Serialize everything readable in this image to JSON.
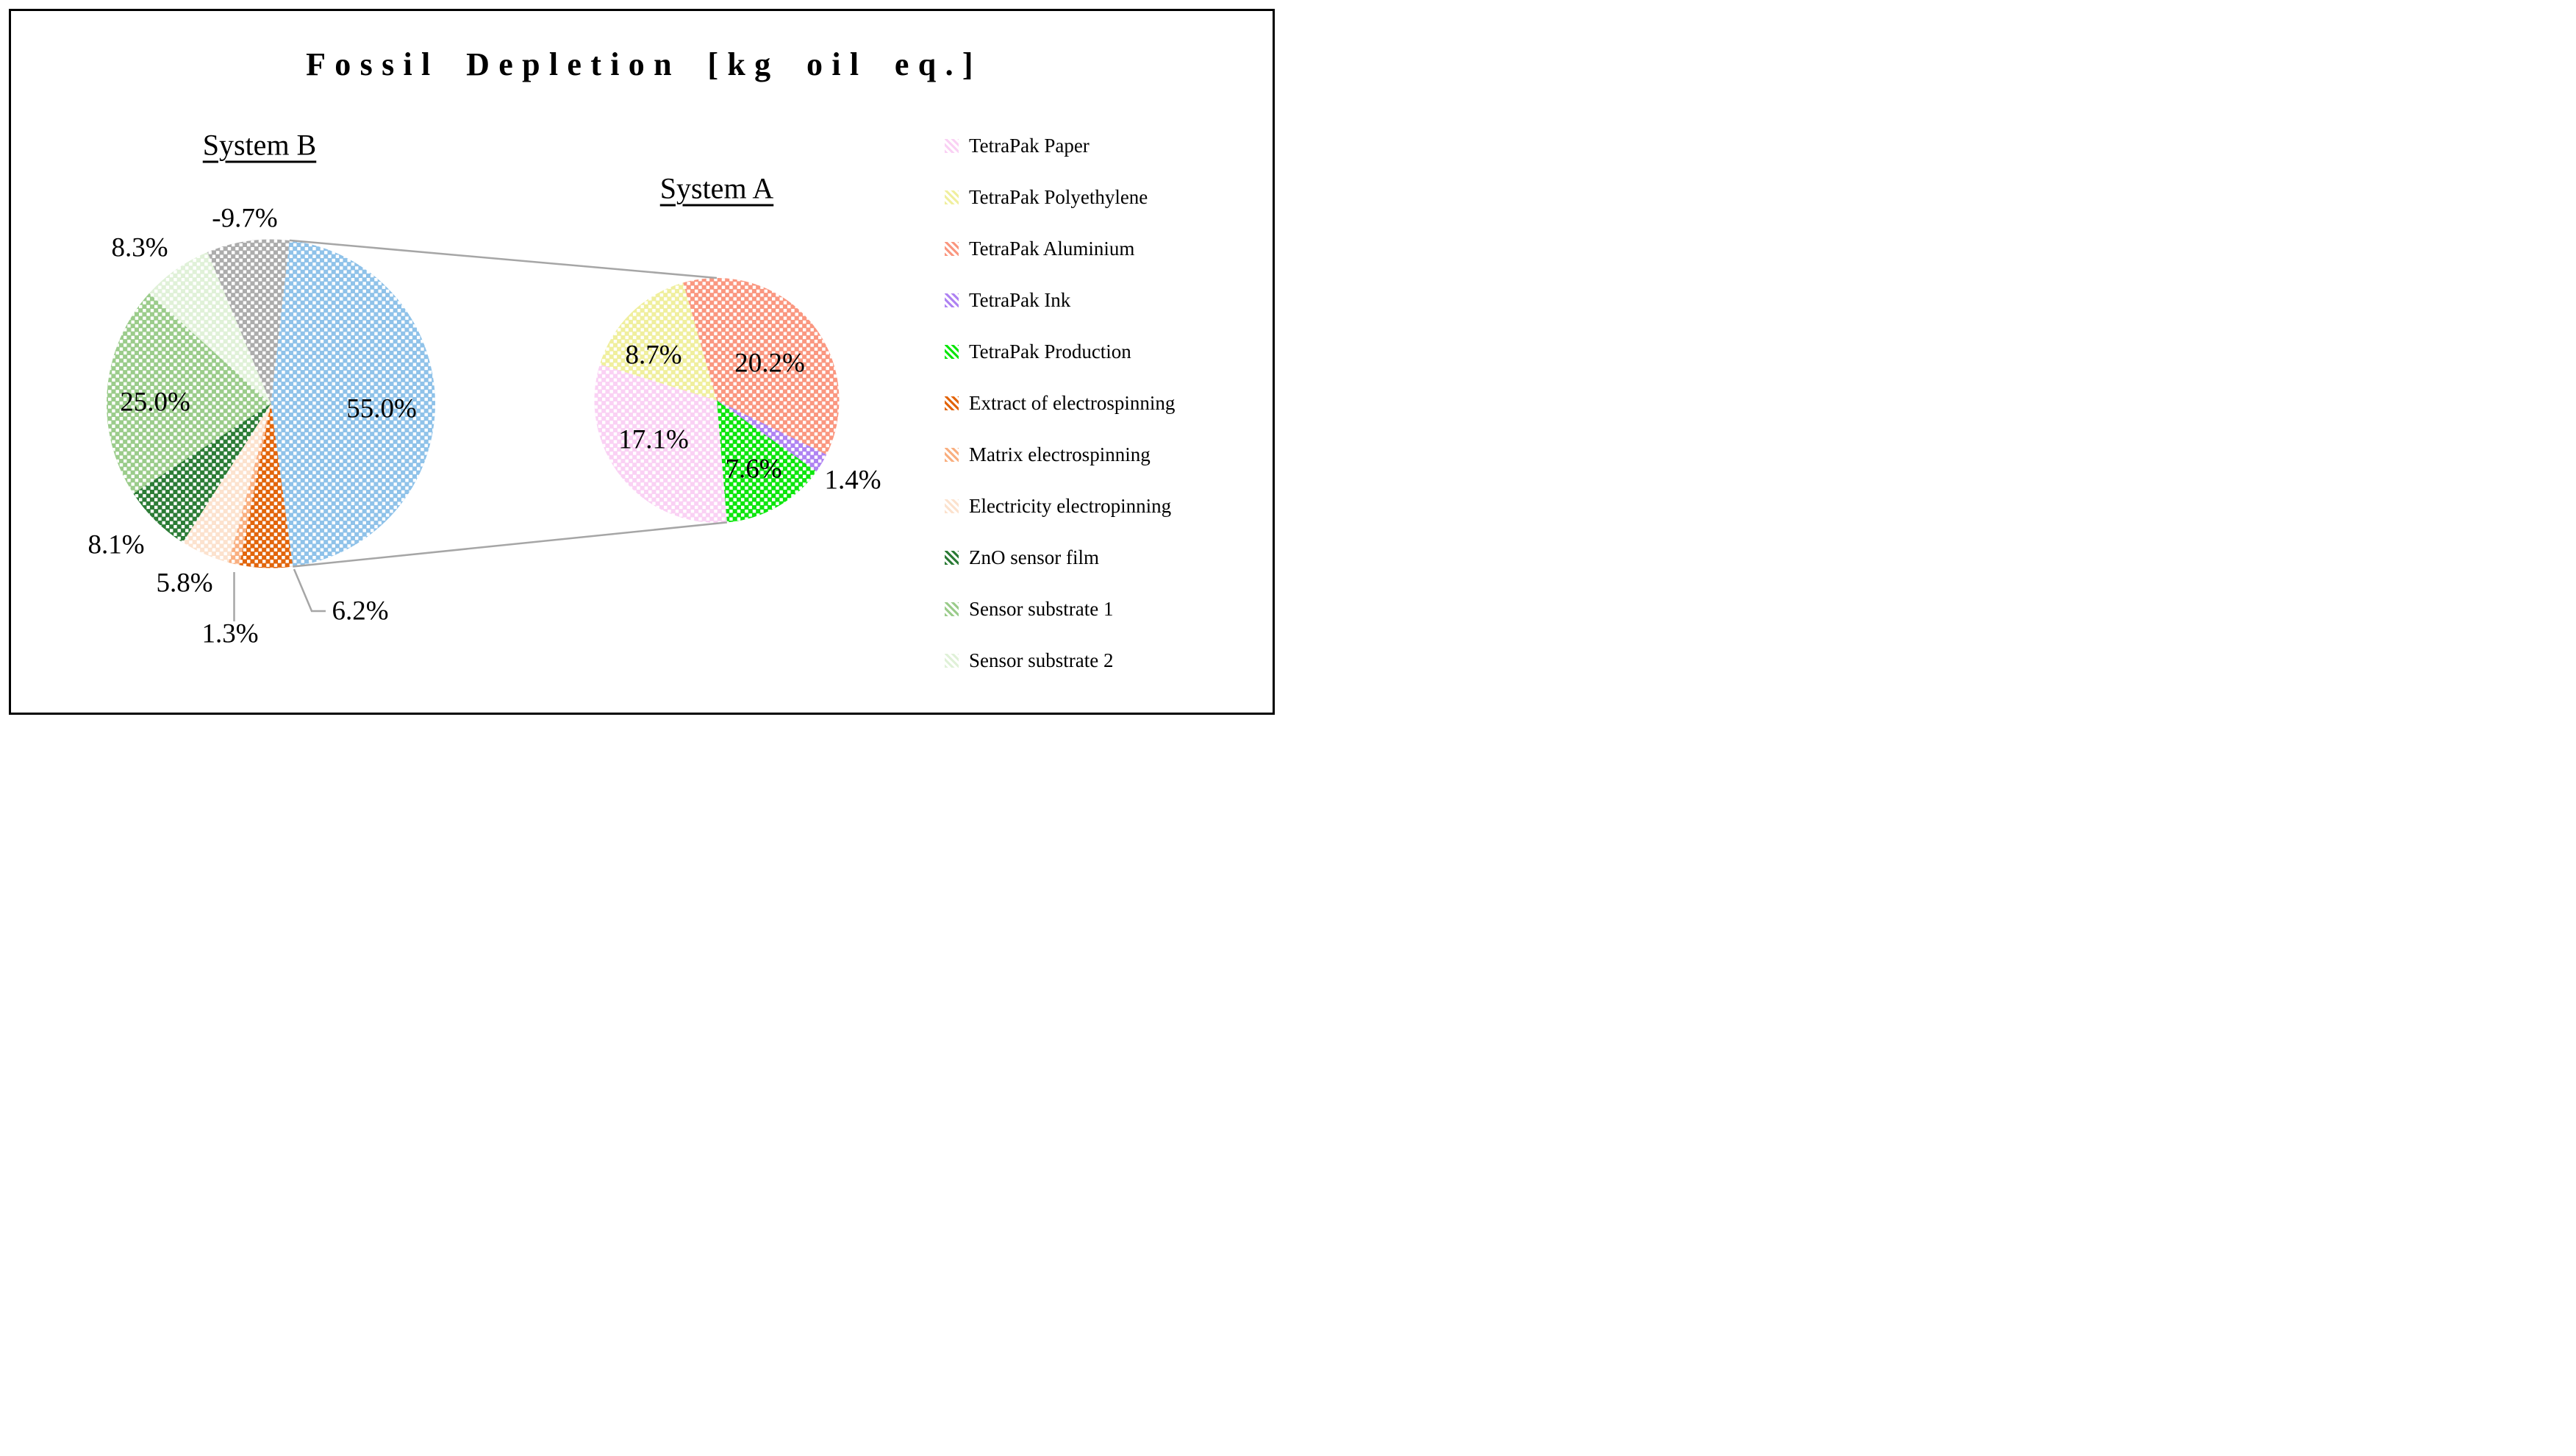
{
  "title": "Fossil Depletion [kg oil eq.]",
  "colors": {
    "connector_gray": "#A6A6A6",
    "frame_black": "#000000",
    "background": "#FFFFFF",
    "hatch": "#FFFFFF"
  },
  "legend": {
    "position": "right",
    "items": [
      {
        "label": "TetraPak Paper",
        "color": "#FAD1F4"
      },
      {
        "label": "TetraPak Polyethylene",
        "color": "#F0EF9E"
      },
      {
        "label": "TetraPak Aluminium",
        "color": "#FA9780"
      },
      {
        "label": "TetraPak Ink",
        "color": "#AF83F2"
      },
      {
        "label": "TetraPak Production",
        "color": "#0CE60C"
      },
      {
        "label": "Extract of electrospinning",
        "color": "#E2650B"
      },
      {
        "label": "Matrix electrospinning",
        "color": "#F9AF80"
      },
      {
        "label": "Electricity electropinning",
        "color": "#FCE2CE"
      },
      {
        "label": "ZnO sensor film",
        "color": "#2C7C36"
      },
      {
        "label": "Sensor substrate 1",
        "color": "#9BCC8B"
      },
      {
        "label": "Sensor substrate 2",
        "color": "#E0F1D8"
      }
    ]
  },
  "chart_data": [
    {
      "type": "pie",
      "title": "System B",
      "start_angle_deg": 6.5,
      "angle_basis": "abs_values",
      "hatch": "white-diagonal-dots",
      "expanded_slice_index": 0,
      "slices": [
        {
          "name": "System A",
          "value": 55.0,
          "display": "55.0%",
          "color": "#8FC2E9"
        },
        {
          "name": "Extract of electrospinning",
          "value": 6.2,
          "display": "6.2%",
          "color": "#E2650B"
        },
        {
          "name": "Matrix electrospinning",
          "value": 1.3,
          "display": "1.3%",
          "color": "#F9AF80"
        },
        {
          "name": "Electricity electropinning",
          "value": 5.8,
          "display": "5.8%",
          "color": "#FCE2CE"
        },
        {
          "name": "ZnO sensor film",
          "value": 8.1,
          "display": "8.1%",
          "color": "#2C7C36"
        },
        {
          "name": "Sensor substrate 1",
          "value": 25.0,
          "display": "25.0%",
          "color": "#9BCC8B"
        },
        {
          "name": "Sensor substrate 2",
          "value": 8.3,
          "display": "8.3%",
          "color": "#E0F1D8"
        },
        {
          "name": null,
          "value": -9.7,
          "display": "-9.7%",
          "color": "#ACACAC"
        }
      ]
    },
    {
      "type": "pie",
      "title": "System A",
      "start_angle_deg": 175.2,
      "angle_basis": "abs_values",
      "hatch": "white-diagonal-dots",
      "slices": [
        {
          "name": "TetraPak Paper",
          "value": 17.1,
          "display": "17.1%",
          "color": "#FAD1F4"
        },
        {
          "name": "TetraPak Polyethylene",
          "value": 8.7,
          "display": "8.7%",
          "color": "#F0EF9E"
        },
        {
          "name": "TetraPak Aluminium",
          "value": 20.2,
          "display": "20.2%",
          "color": "#FA9780"
        },
        {
          "name": "TetraPak Ink",
          "value": 1.4,
          "display": "1.4%",
          "color": "#AF83F2"
        },
        {
          "name": "TetraPak Production",
          "value": 7.6,
          "display": "7.6%",
          "color": "#0CE60C"
        }
      ]
    }
  ]
}
